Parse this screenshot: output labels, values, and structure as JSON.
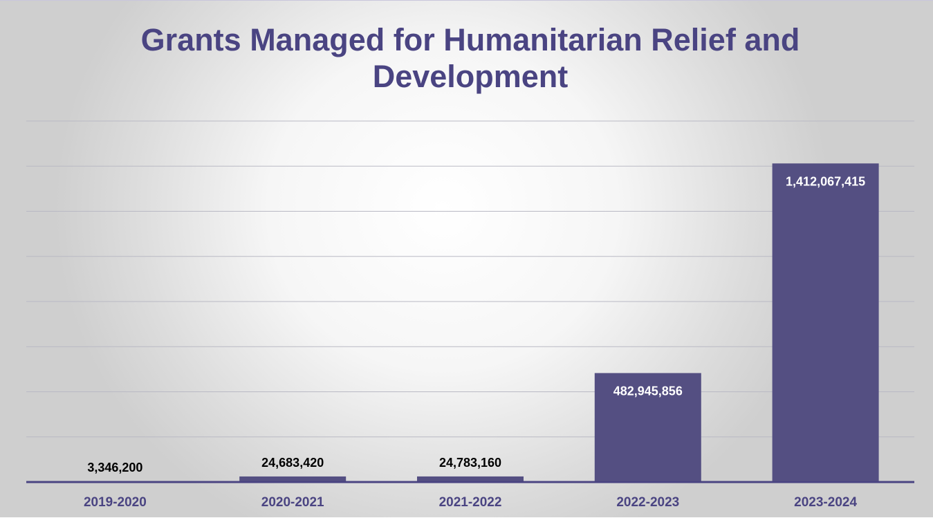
{
  "chart_data": {
    "type": "bar",
    "title": "Grants Managed for Humanitarian Relief and Development",
    "categories": [
      "2019-2020",
      "2020-2021",
      "2021-2022",
      "2022-2023",
      "2023-2024"
    ],
    "values": [
      3346200,
      24683420,
      24783160,
      482945856,
      1412067415
    ],
    "data_labels": [
      "3,346,200",
      "24,683,420",
      "24,783,160",
      "482,945,856",
      "1,412,067,415"
    ],
    "xlabel": "",
    "ylabel": "",
    "ylim": [
      0,
      1600000000
    ],
    "gridlines": true,
    "y_tick_labels_shown": false,
    "legend": "none",
    "colors": {
      "bar": "#544f82",
      "title": "#4a4482",
      "category_label": "#4a4482",
      "axis": "#4a4482",
      "gridline": "#b9b9c4",
      "label_inside": "#ffffff",
      "label_outside": "#000000"
    }
  }
}
